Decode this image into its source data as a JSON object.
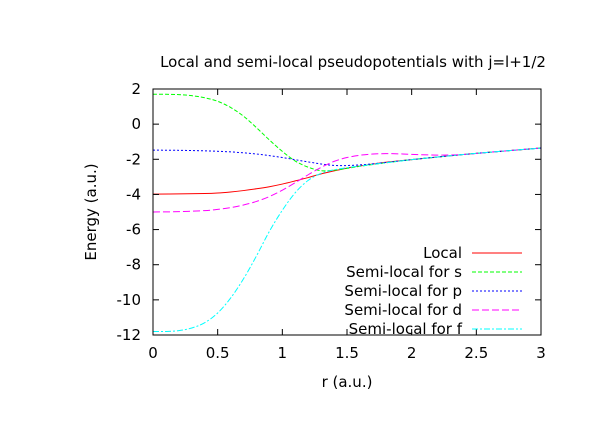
{
  "chart_data": {
    "type": "line",
    "title": "Local and semi-local pseudopotentials with j=l+1/2",
    "xlabel": "r (a.u.)",
    "ylabel": "Energy (a.u.)",
    "xlim": [
      0,
      3
    ],
    "ylim": [
      -12,
      2
    ],
    "xticks": [
      0,
      0.5,
      1,
      1.5,
      2,
      2.5,
      3
    ],
    "xtick_labels": [
      "0",
      "0.5",
      "1",
      "1.5",
      "2",
      "2.5",
      "3"
    ],
    "yticks": [
      2,
      0,
      -2,
      -4,
      -6,
      -8,
      -10,
      -12
    ],
    "ytick_labels": [
      "2",
      "0",
      "-2",
      "-4",
      "-6",
      "-8",
      "-10",
      "-12"
    ],
    "grid": false,
    "legend_position": "bottom-right",
    "series": [
      {
        "name": "Local",
        "color": "#ff0000",
        "dash": "solid",
        "x": [
          0,
          0.2,
          0.4,
          0.5,
          0.6,
          0.7,
          0.8,
          0.9,
          1.0,
          1.1,
          1.2,
          1.3,
          1.4,
          1.5,
          1.6,
          1.7,
          1.8,
          2.0,
          2.2,
          2.4,
          2.6,
          2.8,
          3.0
        ],
        "y": [
          -3.98,
          -3.97,
          -3.95,
          -3.92,
          -3.86,
          -3.78,
          -3.68,
          -3.56,
          -3.41,
          -3.23,
          -3.04,
          -2.83,
          -2.66,
          -2.5,
          -2.38,
          -2.27,
          -2.17,
          -2.02,
          -1.87,
          -1.73,
          -1.6,
          -1.48,
          -1.36
        ]
      },
      {
        "name": "Semi-local for s",
        "color": "#00ff00",
        "dash": "dashed",
        "x": [
          0,
          0.1,
          0.2,
          0.3,
          0.4,
          0.5,
          0.6,
          0.7,
          0.8,
          0.9,
          1.0,
          1.1,
          1.2,
          1.3,
          1.4,
          1.5,
          1.6,
          1.8,
          2.0,
          2.2,
          2.4,
          2.6,
          2.8,
          3.0
        ],
        "y": [
          1.7,
          1.7,
          1.68,
          1.62,
          1.5,
          1.3,
          0.95,
          0.45,
          -0.2,
          -0.9,
          -1.55,
          -2.1,
          -2.45,
          -2.65,
          -2.62,
          -2.52,
          -2.4,
          -2.2,
          -2.02,
          -1.87,
          -1.73,
          -1.6,
          -1.48,
          -1.36
        ]
      },
      {
        "name": "Semi-local for p",
        "color": "#0000ff",
        "dash": "dotted",
        "x": [
          0,
          0.2,
          0.4,
          0.6,
          0.8,
          1.0,
          1.2,
          1.4,
          1.6,
          1.8,
          2.0,
          2.2,
          2.4,
          2.6,
          2.8,
          3.0
        ],
        "y": [
          -1.48,
          -1.49,
          -1.52,
          -1.58,
          -1.7,
          -1.9,
          -2.15,
          -2.35,
          -2.32,
          -2.18,
          -2.02,
          -1.87,
          -1.73,
          -1.6,
          -1.48,
          -1.36
        ]
      },
      {
        "name": "Semi-local for d",
        "color": "#ff00ff",
        "dash": "longdash",
        "x": [
          0,
          0.2,
          0.4,
          0.5,
          0.6,
          0.7,
          0.8,
          0.9,
          1.0,
          1.1,
          1.2,
          1.3,
          1.4,
          1.5,
          1.6,
          1.7,
          1.8,
          1.9,
          2.0,
          2.2,
          2.4,
          2.6,
          2.8,
          3.0
        ],
        "y": [
          -5.0,
          -4.98,
          -4.92,
          -4.85,
          -4.75,
          -4.6,
          -4.4,
          -4.12,
          -3.76,
          -3.33,
          -2.88,
          -2.46,
          -2.12,
          -1.9,
          -1.77,
          -1.7,
          -1.68,
          -1.69,
          -1.72,
          -1.76,
          -1.73,
          -1.6,
          -1.48,
          -1.36
        ]
      },
      {
        "name": "Semi-local for f",
        "color": "#00ffff",
        "dash": "dashdot",
        "x": [
          0,
          0.1,
          0.2,
          0.3,
          0.4,
          0.5,
          0.6,
          0.7,
          0.8,
          0.9,
          1.0,
          1.1,
          1.2,
          1.3,
          1.4,
          1.5,
          1.6,
          1.8,
          2.0,
          2.2,
          2.4,
          2.6,
          2.8,
          3.0
        ],
        "y": [
          -11.8,
          -11.8,
          -11.75,
          -11.6,
          -11.3,
          -10.75,
          -9.9,
          -8.8,
          -7.5,
          -6.1,
          -4.9,
          -3.9,
          -3.2,
          -2.8,
          -2.6,
          -2.48,
          -2.38,
          -2.2,
          -2.02,
          -1.87,
          -1.73,
          -1.6,
          -1.48,
          -1.36
        ]
      }
    ]
  }
}
